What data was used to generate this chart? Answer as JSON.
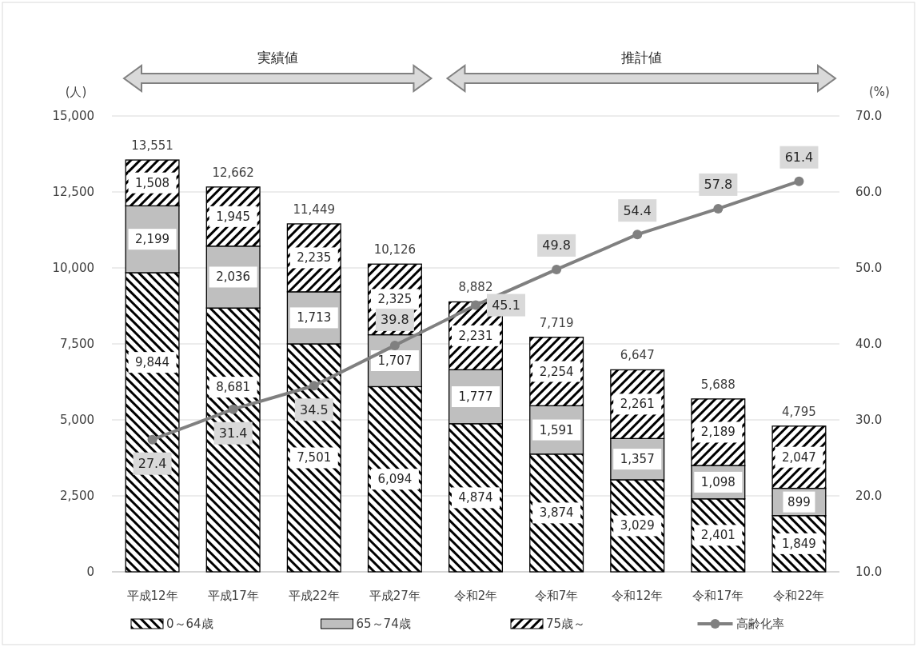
{
  "chart_data": {
    "type": "bar",
    "stacked": true,
    "categories": [
      "平成12年",
      "平成17年",
      "平成22年",
      "平成27年",
      "令和2年",
      "令和7年",
      "令和12年",
      "令和17年",
      "令和22年"
    ],
    "ylabel": "(人)",
    "y2label": "(%)",
    "ylim": [
      0,
      15000
    ],
    "yticks": [
      0,
      {
        "value": 2500,
        "label": "2,500"
      },
      {
        "value": 5000,
        "label": "5,000"
      },
      {
        "value": 7500,
        "label": "7,500"
      },
      {
        "value": 10000,
        "label": "10,000"
      },
      {
        "value": 12500,
        "label": "12,500"
      },
      {
        "value": 15000,
        "label": "15,000"
      }
    ],
    "y2lim": [
      10,
      70
    ],
    "y2ticks": [
      {
        "value": 10,
        "label": "10.0"
      },
      {
        "value": 20,
        "label": "20.0"
      },
      {
        "value": 30,
        "label": "30.0"
      },
      {
        "value": 40,
        "label": "40.0"
      },
      {
        "value": 50,
        "label": "50.0"
      },
      {
        "value": 60,
        "label": "60.0"
      },
      {
        "value": 70,
        "label": "70.0"
      }
    ],
    "series": [
      {
        "name": "0～64歳",
        "color": "#000000",
        "values": [
          9844,
          8681,
          7501,
          6094,
          4874,
          3874,
          3029,
          2401,
          1849
        ],
        "value_labels": [
          "9,844",
          "8,681",
          "7,501",
          "6,094",
          "4,874",
          "3,874",
          "3,029",
          "2,401",
          "1,849"
        ]
      },
      {
        "name": "65～74歳",
        "color": "#bfbfbf",
        "values": [
          2199,
          2036,
          1713,
          1707,
          1777,
          1591,
          1357,
          1098,
          899
        ],
        "value_labels": [
          "2,199",
          "2,036",
          "1,713",
          "1,707",
          "1,777",
          "1,591",
          "1,357",
          "1,098",
          "899"
        ]
      },
      {
        "name": "75歳～",
        "color": "#000000",
        "values": [
          1508,
          1945,
          2235,
          2325,
          2231,
          2254,
          2261,
          2189,
          2047
        ],
        "value_labels": [
          "1,508",
          "1,945",
          "2,235",
          "2,325",
          "2,231",
          "2,254",
          "2,261",
          "2,189",
          "2,047"
        ]
      },
      {
        "name": "高齢化率",
        "type": "line",
        "axis": "y2",
        "color": "#808080",
        "values": [
          27.4,
          31.4,
          34.5,
          39.8,
          45.1,
          49.8,
          54.4,
          57.8,
          61.4
        ],
        "value_labels": [
          "27.4",
          "31.4",
          "34.5",
          "39.8",
          "45.1",
          "49.8",
          "54.4",
          "57.8",
          "61.4"
        ]
      }
    ],
    "totals": [
      "13,551",
      "12,662",
      "11,449",
      "10,126",
      "8,882",
      "7,719",
      "6,647",
      "5,688",
      "4,795"
    ],
    "grid": "y",
    "legend": "bottom",
    "marker": "circle",
    "annotations": [
      "実績値",
      "推計値"
    ]
  }
}
